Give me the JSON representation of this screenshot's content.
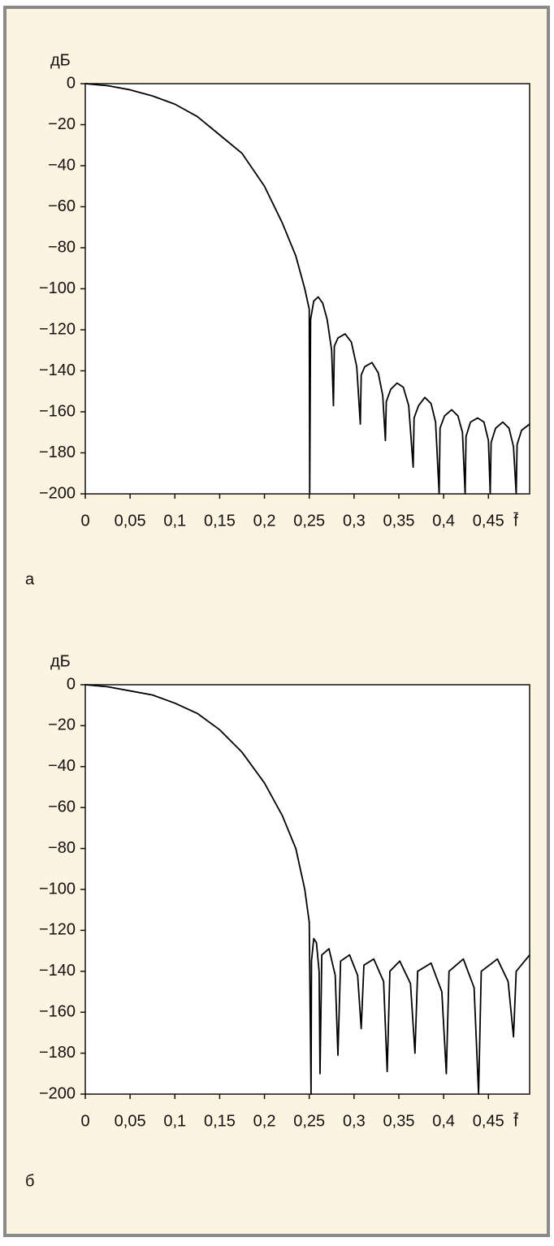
{
  "chart_data": [
    {
      "type": "line",
      "caption": "а",
      "ylabel": "дБ",
      "xlabel": "f̄",
      "color": "#000000",
      "xlim": [
        0,
        0.496
      ],
      "ylim": [
        -200,
        0
      ],
      "xticks": [
        0,
        {
          "value": 0.05,
          "label": "0,05"
        },
        {
          "value": 0.1,
          "label": "0,1"
        },
        {
          "value": 0.15,
          "label": "0,15"
        },
        {
          "value": 0.2,
          "label": "0,2"
        },
        {
          "value": 0.25,
          "label": "0,25"
        },
        {
          "value": 0.3,
          "label": "0,3"
        },
        {
          "value": 0.35,
          "label": "0,35"
        },
        {
          "value": 0.4,
          "label": "0,4"
        },
        {
          "value": 0.45,
          "label": "0,45"
        }
      ],
      "yticks": [
        0,
        {
          "value": -20,
          "label": "−20"
        },
        {
          "value": -40,
          "label": "−40"
        },
        {
          "value": -60,
          "label": "−60"
        },
        {
          "value": -80,
          "label": "−80"
        },
        {
          "value": -100,
          "label": "−100"
        },
        {
          "value": -120,
          "label": "−120"
        },
        {
          "value": -140,
          "label": "−140"
        },
        {
          "value": -160,
          "label": "−160"
        },
        {
          "value": -180,
          "label": "−180"
        },
        {
          "value": -200,
          "label": "−200"
        }
      ],
      "x": [
        0,
        0.025,
        0.05,
        0.075,
        0.1,
        0.125,
        0.15,
        0.175,
        0.2,
        0.22,
        0.235,
        0.245,
        0.25,
        0.2505,
        0.2515,
        0.255,
        0.26,
        0.265,
        0.27,
        0.275,
        0.277,
        0.278,
        0.282,
        0.29,
        0.297,
        0.303,
        0.307,
        0.308,
        0.312,
        0.32,
        0.327,
        0.332,
        0.335,
        0.336,
        0.341,
        0.348,
        0.355,
        0.361,
        0.366,
        0.367,
        0.372,
        0.379,
        0.386,
        0.391,
        0.395,
        0.396,
        0.401,
        0.409,
        0.416,
        0.421,
        0.424,
        0.425,
        0.43,
        0.438,
        0.445,
        0.45,
        0.452,
        0.453,
        0.458,
        0.466,
        0.473,
        0.478,
        0.481,
        0.482,
        0.487,
        0.496
      ],
      "values": [
        0,
        -1,
        -3,
        -6,
        -10,
        -16,
        -25,
        -34,
        -50,
        -68,
        -84,
        -100,
        -110,
        -200,
        -115,
        -106,
        -104,
        -107,
        -115,
        -130,
        -157,
        -128,
        -124,
        -122,
        -126,
        -138,
        -166,
        -142,
        -138,
        -136,
        -141,
        -152,
        -174,
        -155,
        -149,
        -146,
        -148,
        -157,
        -187,
        -163,
        -157,
        -153,
        -156,
        -165,
        -200,
        -168,
        -162,
        -159,
        -162,
        -170,
        -200,
        -172,
        -165,
        -163,
        -165,
        -174,
        -200,
        -175,
        -168,
        -165,
        -168,
        -177,
        -200,
        -176,
        -169,
        -166
      ]
    },
    {
      "type": "line",
      "caption": "б",
      "ylabel": "дБ",
      "xlabel": "f̄",
      "color": "#000000",
      "xlim": [
        0,
        0.496
      ],
      "ylim": [
        -200,
        0
      ],
      "xticks": [
        0,
        {
          "value": 0.05,
          "label": "0,05"
        },
        {
          "value": 0.1,
          "label": "0,1"
        },
        {
          "value": 0.15,
          "label": "0,15"
        },
        {
          "value": 0.2,
          "label": "0,2"
        },
        {
          "value": 0.25,
          "label": "0,25"
        },
        {
          "value": 0.3,
          "label": "0,3"
        },
        {
          "value": 0.35,
          "label": "0,35"
        },
        {
          "value": 0.4,
          "label": "0,4"
        },
        {
          "value": 0.45,
          "label": "0,45"
        }
      ],
      "yticks": [
        0,
        {
          "value": -20,
          "label": "−20"
        },
        {
          "value": -40,
          "label": "−40"
        },
        {
          "value": -60,
          "label": "−60"
        },
        {
          "value": -80,
          "label": "−80"
        },
        {
          "value": -100,
          "label": "−100"
        },
        {
          "value": -120,
          "label": "−120"
        },
        {
          "value": -140,
          "label": "−140"
        },
        {
          "value": -160,
          "label": "−160"
        },
        {
          "value": -180,
          "label": "−180"
        },
        {
          "value": -200,
          "label": "−200"
        }
      ],
      "x": [
        0,
        0.025,
        0.05,
        0.075,
        0.1,
        0.125,
        0.15,
        0.175,
        0.2,
        0.22,
        0.235,
        0.245,
        0.25,
        0.252,
        0.2525,
        0.255,
        0.258,
        0.261,
        0.262,
        0.264,
        0.272,
        0.279,
        0.282,
        0.285,
        0.295,
        0.304,
        0.308,
        0.311,
        0.322,
        0.333,
        0.337,
        0.34,
        0.351,
        0.363,
        0.368,
        0.371,
        0.386,
        0.398,
        0.403,
        0.406,
        0.422,
        0.434,
        0.439,
        0.442,
        0.46,
        0.472,
        0.478,
        0.481,
        0.496
      ],
      "values": [
        0,
        -1,
        -3,
        -5,
        -9,
        -14,
        -22,
        -33,
        -48,
        -64,
        -80,
        -100,
        -116,
        -200,
        -135,
        -124,
        -126,
        -140,
        -190,
        -132,
        -129,
        -142,
        -181,
        -135,
        -132,
        -142,
        -168,
        -137,
        -134,
        -145,
        -189,
        -140,
        -135,
        -146,
        -180,
        -140,
        -136,
        -150,
        -190,
        -140,
        -134,
        -148,
        -200,
        -140,
        -134,
        -145,
        -172,
        -140,
        -132
      ]
    }
  ]
}
